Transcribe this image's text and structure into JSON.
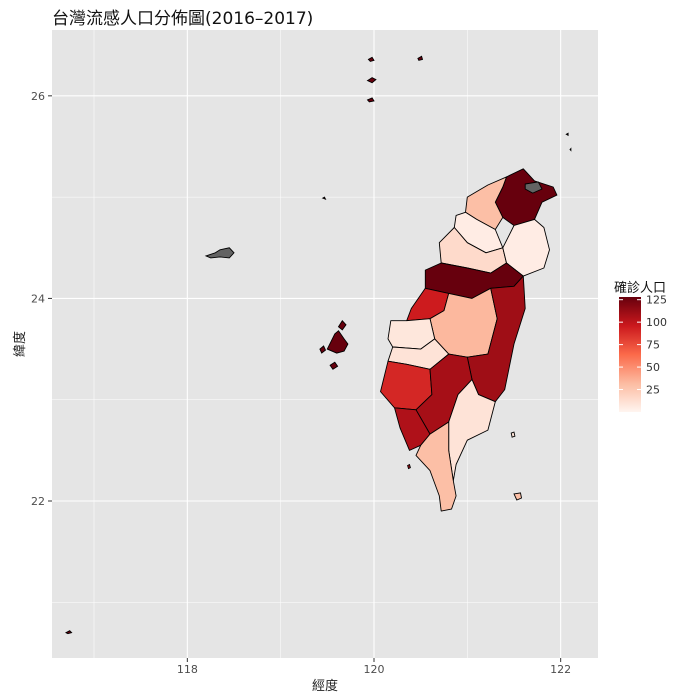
{
  "title": "台灣流感人口分佈圖(2016–2017)",
  "xlabel": "經度",
  "ylabel": "緯度",
  "x_ticks": [
    118,
    120,
    122
  ],
  "y_ticks": [
    22,
    24,
    26
  ],
  "legend": {
    "title": "確診人口",
    "breaks": [
      25,
      50,
      75,
      100,
      125
    ],
    "gradient": [
      "#fff5f0",
      "#fcbba1",
      "#fb6a4a",
      "#cb181d",
      "#67000d"
    ]
  },
  "colors": {
    "panel_bg": "#e5e5e5",
    "grid": "#ffffff",
    "missing": "#636363"
  },
  "chart_data": {
    "type": "choropleth",
    "xlim": [
      116.55,
      122.4
    ],
    "ylim": [
      20.45,
      26.65
    ],
    "value_range": [
      0,
      128
    ],
    "regions": [
      {
        "id": "north",
        "value": 128,
        "points": [
          [
            121.42,
            25.2
          ],
          [
            121.6,
            25.28
          ],
          [
            121.72,
            25.16
          ],
          [
            121.92,
            25.1
          ],
          [
            121.96,
            25.02
          ],
          [
            121.8,
            24.95
          ],
          [
            121.72,
            24.78
          ],
          [
            121.5,
            24.72
          ],
          [
            121.38,
            24.8
          ],
          [
            121.3,
            24.95
          ],
          [
            121.38,
            25.1
          ]
        ]
      },
      {
        "id": "keelung",
        "value": null,
        "points": [
          [
            121.62,
            25.13
          ],
          [
            121.76,
            25.15
          ],
          [
            121.8,
            25.08
          ],
          [
            121.7,
            25.04
          ],
          [
            121.62,
            25.08
          ]
        ]
      },
      {
        "id": "taoyuan",
        "value": 30,
        "points": [
          [
            121.0,
            25.0
          ],
          [
            121.22,
            25.12
          ],
          [
            121.42,
            25.2
          ],
          [
            121.38,
            25.1
          ],
          [
            121.3,
            24.95
          ],
          [
            121.38,
            24.8
          ],
          [
            121.3,
            24.68
          ],
          [
            121.1,
            24.78
          ],
          [
            120.98,
            24.85
          ]
        ]
      },
      {
        "id": "hsinchu",
        "value": 5,
        "points": [
          [
            120.88,
            24.82
          ],
          [
            120.98,
            24.85
          ],
          [
            121.1,
            24.78
          ],
          [
            121.3,
            24.68
          ],
          [
            121.38,
            24.5
          ],
          [
            121.2,
            24.45
          ],
          [
            121.0,
            24.55
          ],
          [
            120.86,
            24.7
          ]
        ]
      },
      {
        "id": "miaoli",
        "value": 15,
        "points": [
          [
            120.7,
            24.55
          ],
          [
            120.86,
            24.7
          ],
          [
            121.0,
            24.55
          ],
          [
            121.2,
            24.45
          ],
          [
            121.38,
            24.5
          ],
          [
            121.42,
            24.35
          ],
          [
            121.25,
            24.25
          ],
          [
            121.0,
            24.3
          ],
          [
            120.72,
            24.35
          ]
        ]
      },
      {
        "id": "yilan",
        "value": 5,
        "points": [
          [
            121.72,
            24.78
          ],
          [
            121.82,
            24.7
          ],
          [
            121.88,
            24.48
          ],
          [
            121.82,
            24.3
          ],
          [
            121.6,
            24.22
          ],
          [
            121.42,
            24.35
          ],
          [
            121.38,
            24.5
          ],
          [
            121.5,
            24.72
          ]
        ]
      },
      {
        "id": "taichung",
        "value": 128,
        "points": [
          [
            120.55,
            24.28
          ],
          [
            120.72,
            24.35
          ],
          [
            121.0,
            24.3
          ],
          [
            121.25,
            24.25
          ],
          [
            121.42,
            24.35
          ],
          [
            121.6,
            24.22
          ],
          [
            121.5,
            24.12
          ],
          [
            121.25,
            24.1
          ],
          [
            121.05,
            24.0
          ],
          [
            120.8,
            24.05
          ],
          [
            120.55,
            24.1
          ]
        ]
      },
      {
        "id": "changhua",
        "value": 95,
        "points": [
          [
            120.4,
            23.9
          ],
          [
            120.55,
            24.1
          ],
          [
            120.8,
            24.05
          ],
          [
            120.75,
            23.88
          ],
          [
            120.6,
            23.8
          ],
          [
            120.35,
            23.78
          ]
        ]
      },
      {
        "id": "nantou",
        "value": 33,
        "points": [
          [
            120.75,
            23.88
          ],
          [
            120.8,
            24.05
          ],
          [
            121.05,
            24.0
          ],
          [
            121.25,
            24.1
          ],
          [
            121.32,
            23.8
          ],
          [
            121.22,
            23.45
          ],
          [
            121.0,
            23.42
          ],
          [
            120.8,
            23.45
          ],
          [
            120.65,
            23.6
          ],
          [
            120.6,
            23.8
          ]
        ]
      },
      {
        "id": "hualien",
        "value": 110,
        "points": [
          [
            121.25,
            24.1
          ],
          [
            121.5,
            24.12
          ],
          [
            121.6,
            24.22
          ],
          [
            121.62,
            23.9
          ],
          [
            121.5,
            23.55
          ],
          [
            121.4,
            23.1
          ],
          [
            121.3,
            22.98
          ],
          [
            121.12,
            23.05
          ],
          [
            121.05,
            23.2
          ],
          [
            121.0,
            23.42
          ],
          [
            121.22,
            23.45
          ],
          [
            121.32,
            23.8
          ]
        ]
      },
      {
        "id": "yunlin",
        "value": 8,
        "points": [
          [
            120.18,
            23.78
          ],
          [
            120.35,
            23.78
          ],
          [
            120.6,
            23.8
          ],
          [
            120.65,
            23.6
          ],
          [
            120.5,
            23.5
          ],
          [
            120.2,
            23.52
          ],
          [
            120.15,
            23.6
          ]
        ]
      },
      {
        "id": "chiayi",
        "value": 10,
        "points": [
          [
            120.2,
            23.52
          ],
          [
            120.5,
            23.5
          ],
          [
            120.65,
            23.6
          ],
          [
            120.8,
            23.45
          ],
          [
            120.6,
            23.3
          ],
          [
            120.35,
            23.35
          ],
          [
            120.15,
            23.38
          ]
        ]
      },
      {
        "id": "tainan",
        "value": 90,
        "points": [
          [
            120.07,
            23.08
          ],
          [
            120.15,
            23.38
          ],
          [
            120.35,
            23.35
          ],
          [
            120.6,
            23.3
          ],
          [
            120.62,
            23.05
          ],
          [
            120.45,
            22.9
          ],
          [
            120.22,
            22.92
          ]
        ]
      },
      {
        "id": "kaohsiung",
        "value": 108,
        "points": [
          [
            120.6,
            23.3
          ],
          [
            120.8,
            23.45
          ],
          [
            121.0,
            23.42
          ],
          [
            121.05,
            23.2
          ],
          [
            120.9,
            23.05
          ],
          [
            120.8,
            22.78
          ],
          [
            120.6,
            22.66
          ],
          [
            120.45,
            22.9
          ],
          [
            120.62,
            23.05
          ]
        ]
      },
      {
        "id": "kaohsiung-coast",
        "value": 105,
        "points": [
          [
            120.22,
            22.92
          ],
          [
            120.45,
            22.9
          ],
          [
            120.6,
            22.66
          ],
          [
            120.5,
            22.55
          ],
          [
            120.38,
            22.5
          ],
          [
            120.28,
            22.72
          ]
        ]
      },
      {
        "id": "taitung",
        "value": 10,
        "points": [
          [
            121.12,
            23.05
          ],
          [
            121.3,
            22.98
          ],
          [
            121.22,
            22.7
          ],
          [
            121.0,
            22.6
          ],
          [
            120.88,
            22.36
          ],
          [
            120.85,
            22.2
          ],
          [
            120.8,
            22.5
          ],
          [
            120.8,
            22.78
          ],
          [
            120.9,
            23.05
          ],
          [
            121.05,
            23.2
          ]
        ]
      },
      {
        "id": "pingtung",
        "value": 30,
        "points": [
          [
            120.5,
            22.55
          ],
          [
            120.6,
            22.66
          ],
          [
            120.8,
            22.78
          ],
          [
            120.8,
            22.5
          ],
          [
            120.85,
            22.2
          ],
          [
            120.88,
            22.05
          ],
          [
            120.83,
            21.92
          ],
          [
            120.72,
            21.9
          ],
          [
            120.7,
            22.05
          ],
          [
            120.6,
            22.3
          ],
          [
            120.45,
            22.45
          ]
        ]
      }
    ],
    "islands": [
      {
        "id": "kinmen",
        "value": null,
        "points": [
          [
            118.2,
            24.42
          ],
          [
            118.3,
            24.45
          ],
          [
            118.35,
            24.48
          ],
          [
            118.45,
            24.5
          ],
          [
            118.5,
            24.45
          ],
          [
            118.45,
            24.4
          ],
          [
            118.35,
            24.41
          ],
          [
            118.25,
            24.4
          ]
        ]
      },
      {
        "id": "penghu-main",
        "value": 128,
        "points": [
          [
            119.5,
            23.5
          ],
          [
            119.58,
            23.65
          ],
          [
            119.62,
            23.68
          ],
          [
            119.68,
            23.6
          ],
          [
            119.72,
            23.55
          ],
          [
            119.68,
            23.48
          ],
          [
            119.6,
            23.46
          ]
        ]
      },
      {
        "id": "penghu-north",
        "value": 128,
        "points": [
          [
            119.62,
            23.72
          ],
          [
            119.66,
            23.78
          ],
          [
            119.7,
            23.74
          ],
          [
            119.66,
            23.69
          ]
        ]
      },
      {
        "id": "penghu-south",
        "value": 128,
        "points": [
          [
            119.53,
            23.34
          ],
          [
            119.58,
            23.37
          ],
          [
            119.61,
            23.33
          ],
          [
            119.56,
            23.3
          ]
        ]
      },
      {
        "id": "penghu-west",
        "value": 128,
        "points": [
          [
            119.42,
            23.5
          ],
          [
            119.46,
            23.53
          ],
          [
            119.48,
            23.49
          ],
          [
            119.44,
            23.46
          ]
        ]
      },
      {
        "id": "matsu-1",
        "value": 128,
        "points": [
          [
            119.93,
            26.15
          ],
          [
            119.98,
            26.18
          ],
          [
            120.02,
            26.16
          ],
          [
            119.98,
            26.13
          ]
        ]
      },
      {
        "id": "matsu-2",
        "value": 128,
        "points": [
          [
            119.94,
            26.36
          ],
          [
            119.98,
            26.38
          ],
          [
            120.0,
            26.35
          ],
          [
            119.96,
            26.34
          ]
        ]
      },
      {
        "id": "matsu-3",
        "value": 128,
        "points": [
          [
            119.93,
            25.96
          ],
          [
            119.98,
            25.98
          ],
          [
            120.0,
            25.95
          ],
          [
            119.95,
            25.94
          ]
        ]
      },
      {
        "id": "matsu-4",
        "value": 128,
        "points": [
          [
            120.47,
            26.37
          ],
          [
            120.51,
            26.39
          ],
          [
            120.52,
            26.36
          ],
          [
            120.48,
            26.35
          ]
        ]
      },
      {
        "id": "green-island",
        "value": 10,
        "points": [
          [
            121.47,
            22.67
          ],
          [
            121.5,
            22.68
          ],
          [
            121.51,
            22.64
          ],
          [
            121.48,
            22.63
          ]
        ]
      },
      {
        "id": "orchid-island",
        "value": 30,
        "points": [
          [
            121.5,
            22.07
          ],
          [
            121.57,
            22.08
          ],
          [
            121.58,
            22.03
          ],
          [
            121.53,
            22.01
          ]
        ]
      },
      {
        "id": "liuqiu",
        "value": 105,
        "points": [
          [
            120.36,
            22.35
          ],
          [
            120.38,
            22.36
          ],
          [
            120.39,
            22.33
          ],
          [
            120.37,
            22.32
          ]
        ]
      },
      {
        "id": "pengjia",
        "value": 128,
        "points": [
          [
            122.06,
            25.62
          ],
          [
            122.08,
            25.63
          ],
          [
            122.08,
            25.61
          ]
        ]
      },
      {
        "id": "mianhua",
        "value": 128,
        "points": [
          [
            122.1,
            25.47
          ],
          [
            122.11,
            25.48
          ],
          [
            122.11,
            25.46
          ]
        ]
      },
      {
        "id": "dongsha",
        "value": 128,
        "points": [
          [
            116.7,
            20.7
          ],
          [
            116.74,
            20.72
          ],
          [
            116.76,
            20.7
          ],
          [
            116.72,
            20.69
          ]
        ]
      },
      {
        "id": "wuqiu",
        "value": 128,
        "points": [
          [
            119.45,
            24.99
          ],
          [
            119.47,
            25.0
          ],
          [
            119.48,
            24.98
          ]
        ]
      }
    ]
  }
}
